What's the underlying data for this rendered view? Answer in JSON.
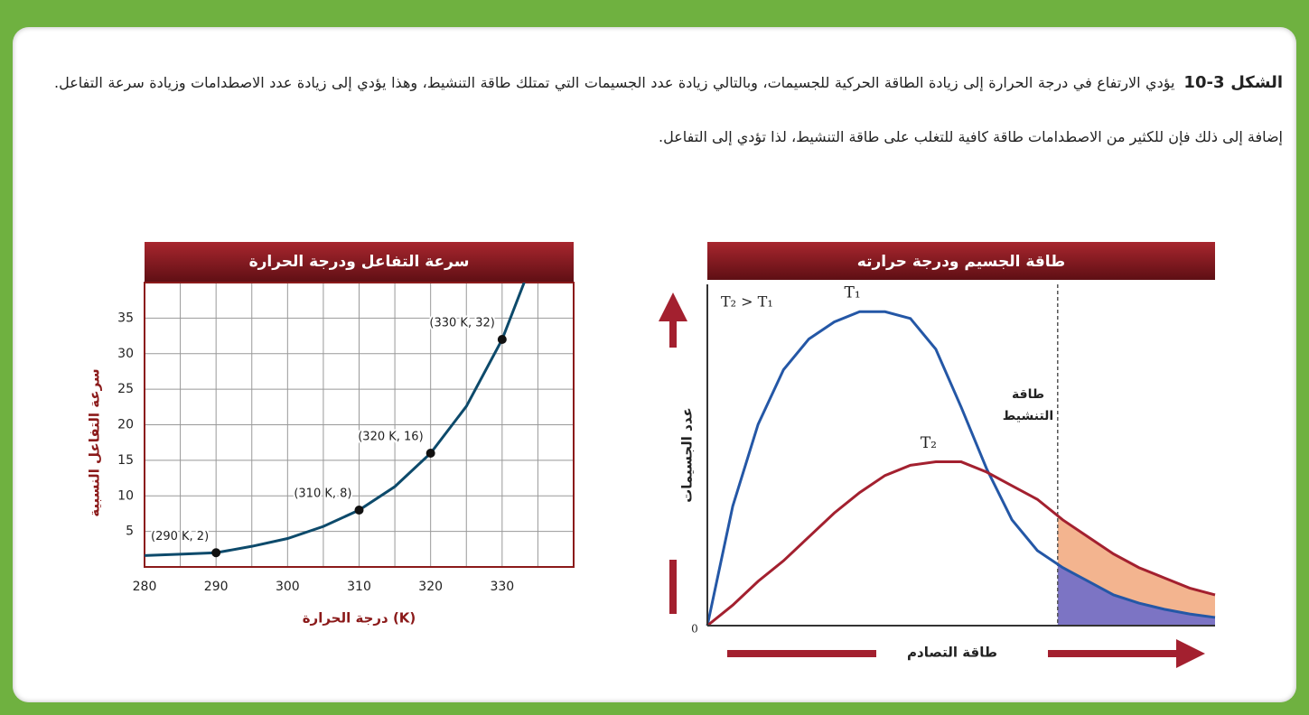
{
  "caption": {
    "label": "الشكل 3-10",
    "text": "يؤدي الارتفاع في درجة الحرارة إلى زيادة الطاقة الحركية للجسيمات، وبالتالي زيادة عدد الجسيمات التي تمتلك طاقة التنشيط، وهذا يؤدي إلى زيادة عدد الاصطدامات وزيادة سرعة التفاعل. إضافة إلى ذلك فإن للكثير من الاصطدامات طاقة كافية للتغلب على طاقة التنشيط، لذا تؤدي إلى التفاعل."
  },
  "chart_data": [
    {
      "type": "line",
      "title": "سرعة التفاعل ودرجة الحرارة",
      "x_label": "درجة الحرارة (K)",
      "y_label": "سرعة التفاعل النسبية",
      "xlim": [
        280,
        340
      ],
      "ylim": [
        0,
        40
      ],
      "xticks": [
        280,
        290,
        300,
        310,
        320,
        330
      ],
      "yticks": [
        5,
        10,
        15,
        20,
        25,
        30,
        35
      ],
      "xgrid": [
        285,
        290,
        295,
        300,
        305,
        310,
        315,
        320,
        325,
        330,
        335
      ],
      "ygrid": [
        5,
        10,
        15,
        20,
        25,
        30,
        35
      ],
      "color": "#0d4a6b",
      "x": [
        280,
        285,
        290,
        295,
        300,
        305,
        310,
        315,
        320,
        325,
        330,
        335
      ],
      "values": [
        1.6,
        1.8,
        2,
        2.9,
        4,
        5.7,
        8,
        11.3,
        16,
        22.6,
        32,
        45
      ],
      "points": {
        "x": [
          290,
          310,
          320,
          330
        ],
        "values": [
          2,
          8,
          16,
          32
        ],
        "value_labels": [
          "(290 K, 2)",
          "(310 K, 8)",
          "(320 K, 16)",
          "(330 K, 32)"
        ]
      }
    },
    {
      "type": "line",
      "title": "طاقة الجسيم ودرجة حرارته",
      "x_label": "طاقة التصادم",
      "y_label": "عدد الجسيمات",
      "origin_label": "0",
      "note": "T₂ > T₁",
      "annotation": "طاقة التنشيط",
      "threshold": 6.9,
      "xlim": [
        0,
        10
      ],
      "ylim": [
        0,
        10
      ],
      "x": [
        0,
        0.5,
        1,
        1.5,
        2,
        2.5,
        3,
        3.5,
        4,
        4.5,
        5,
        5.5,
        6,
        6.5,
        7,
        7.5,
        8,
        8.5,
        9,
        9.5,
        10
      ],
      "series": [
        {
          "name": "T₁",
          "color": "#2457a6",
          "fill": "#7c74c4",
          "values": [
            0,
            3.5,
            5.9,
            7.5,
            8.4,
            8.9,
            9.2,
            9.2,
            9.0,
            8.1,
            6.4,
            4.6,
            3.1,
            2.2,
            1.7,
            1.3,
            0.9,
            0.66,
            0.48,
            0.34,
            0.24
          ]
        },
        {
          "name": "T₂",
          "color": "#a3202f",
          "fill": "#f3b48f",
          "values": [
            0,
            0.6,
            1.3,
            1.9,
            2.6,
            3.3,
            3.9,
            4.4,
            4.7,
            4.8,
            4.8,
            4.5,
            4.1,
            3.7,
            3.1,
            2.6,
            2.1,
            1.7,
            1.4,
            1.1,
            0.9
          ]
        }
      ]
    }
  ]
}
